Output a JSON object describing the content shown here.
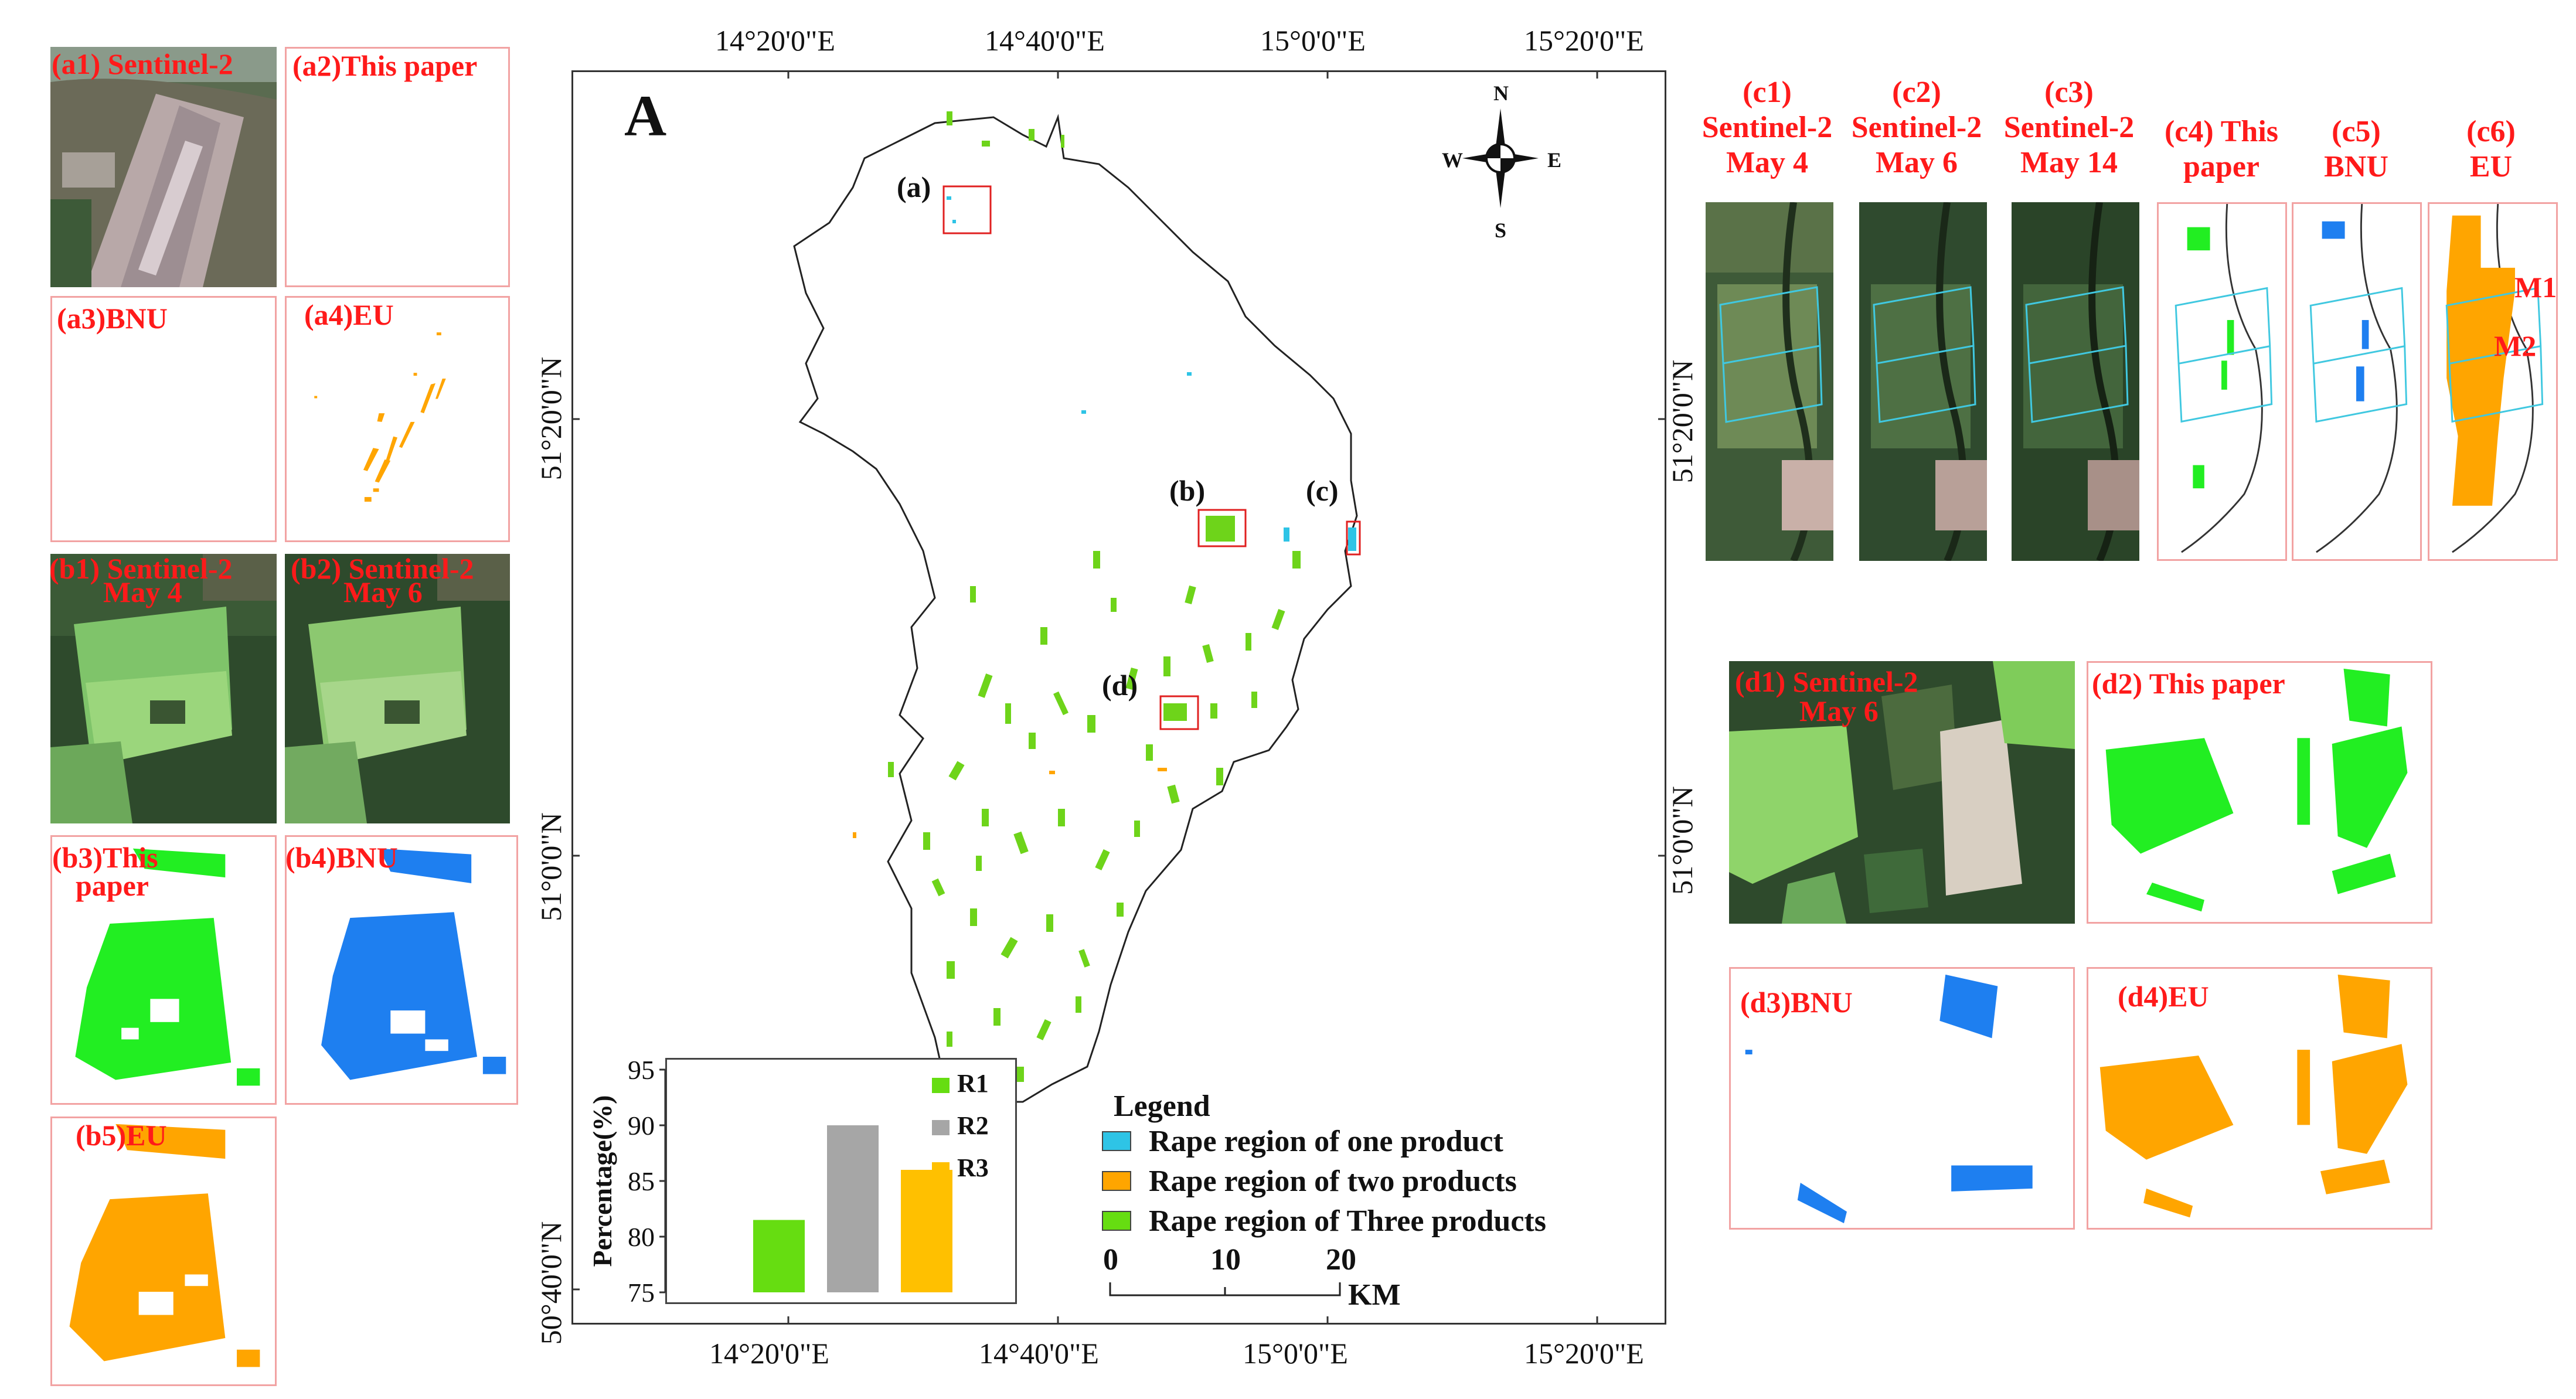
{
  "main_map": {
    "label": "A",
    "top_ticks": [
      "14°20'0\"E",
      "14°40'0\"E",
      "15°0'0\"E",
      "15°20'0\"E"
    ],
    "bottom_ticks": [
      "14°20'0\"E",
      "14°40'0\"E",
      "15°0'0\"E",
      "15°20'0\"E"
    ],
    "left_ticks": [
      "51°20'0\"N",
      "51°0'0\"N",
      "50°40'0\"N"
    ],
    "right_ticks": [
      "51°20'0\"N",
      "51°0'0\"N"
    ],
    "region_markers": [
      "(a)",
      "(b)",
      "(c)",
      "(d)"
    ],
    "compass": {
      "n": "N",
      "s": "S",
      "e": "E",
      "w": "W"
    },
    "scale_bar": {
      "labels": [
        "0",
        "10",
        "20"
      ],
      "unit": "KM"
    }
  },
  "legend": {
    "title": "Legend",
    "items": [
      {
        "label": "Rape region of one product",
        "color": "#2ec4e6"
      },
      {
        "label": "Rape region of two products",
        "color": "#ffa500"
      },
      {
        "label": "Rape region of Three  products",
        "color": "#66dd11"
      }
    ]
  },
  "chart_data": {
    "type": "bar",
    "categories": [
      "R1",
      "R2",
      "R3"
    ],
    "values": [
      81.5,
      90,
      86
    ],
    "colors": [
      "#66dd11",
      "#a6a6a6",
      "#ffc000"
    ],
    "ylabel": "Percentage(%)",
    "ylim": [
      75,
      95
    ],
    "yticks": [
      "95",
      "90",
      "85",
      "80",
      "75"
    ],
    "legend_labels": [
      "R1",
      "R2",
      "R3"
    ]
  },
  "panels_a": [
    "(a1) Sentinel-2",
    "(a2)This paper",
    "(a3)BNU",
    "(a4)EU"
  ],
  "panels_b": [
    "(b1) Sentinel-2",
    "May 4",
    "(b2) Sentinel-2",
    "May 6",
    "(b3)This",
    "paper",
    "(b4)BNU",
    "(b5)EU"
  ],
  "panels_c": [
    {
      "id": "(c1)",
      "l1": "Sentinel-2",
      "l2": "May 4"
    },
    {
      "id": "(c2)",
      "l1": "Sentinel-2",
      "l2": "May 6"
    },
    {
      "id": "(c3)",
      "l1": "Sentinel-2",
      "l2": "May 14"
    },
    {
      "id": "(c4) This",
      "l1": "paper",
      "l2": ""
    },
    {
      "id": "(c5)",
      "l1": "BNU",
      "l2": ""
    },
    {
      "id": "(c6)",
      "l1": "EU",
      "l2": ""
    }
  ],
  "c6_marks": [
    "M1",
    "M2"
  ],
  "panels_d": [
    "(d1) Sentinel-2",
    "May 6",
    "(d2) This paper",
    "(d3)BNU",
    "(d4)EU"
  ]
}
